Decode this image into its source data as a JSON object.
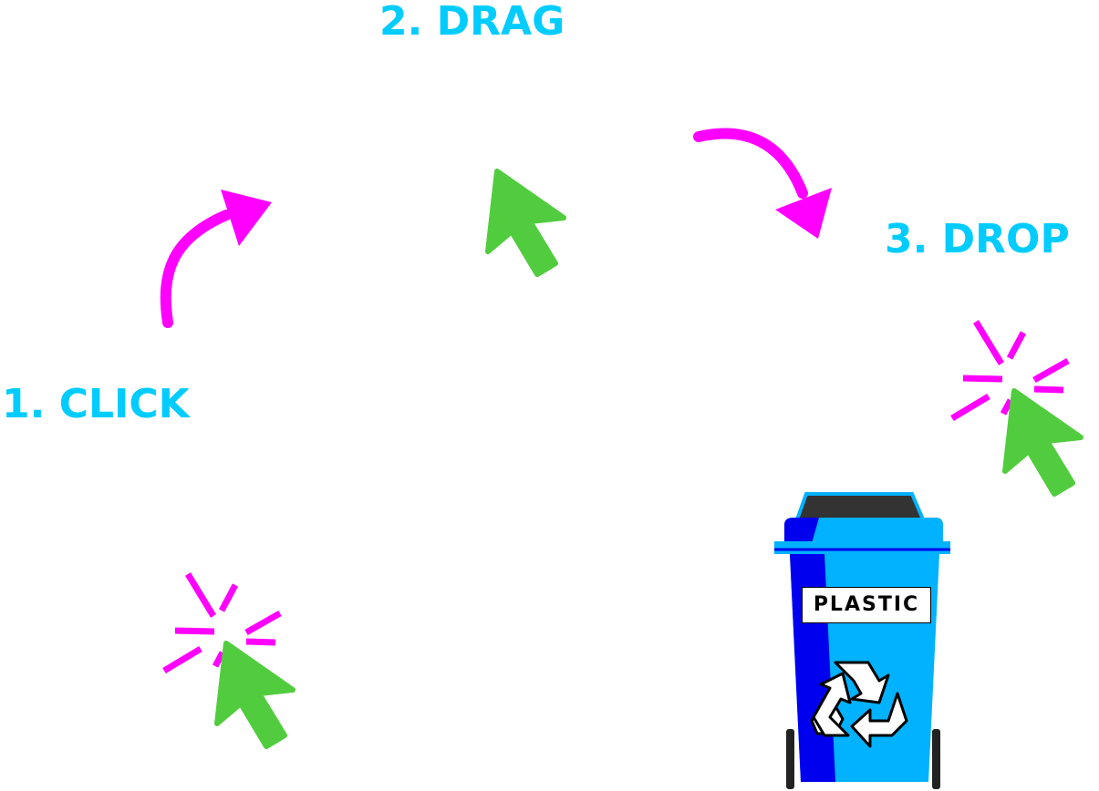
{
  "steps": [
    {
      "label": "1. CLICK"
    },
    {
      "label": "2. DRAG"
    },
    {
      "label": "3. DROP"
    }
  ],
  "bin": {
    "label": "PLASTIC",
    "icon": "recycle-icon"
  },
  "colors": {
    "label_text": "#00ccff",
    "arrow": "#ff00ff",
    "click_burst": "#ff00ff",
    "cursor": "#52cc3f",
    "bin_body": "#00b2ff",
    "bin_shadow": "#0000ee",
    "bin_lid": "#333333",
    "background": "#ffffff"
  },
  "icons": [
    "cursor-icon",
    "click-burst-icon",
    "curved-arrow-icon",
    "recycle-icon",
    "recycling-bin"
  ]
}
